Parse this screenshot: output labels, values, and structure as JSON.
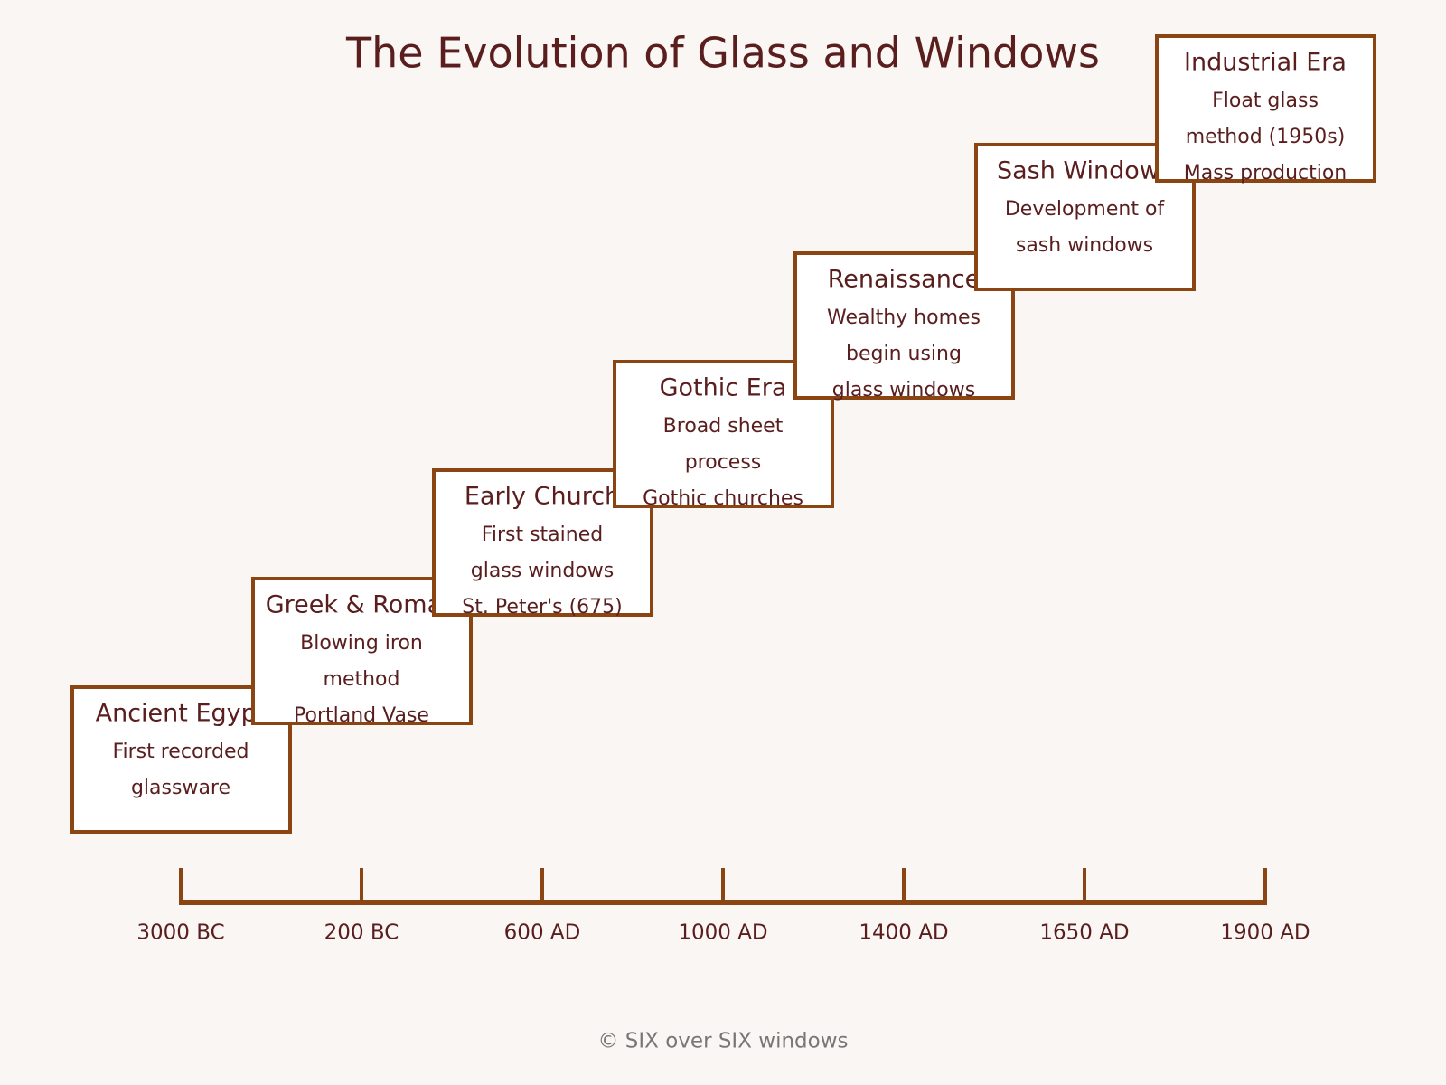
{
  "title": "The Evolution of Glass and Windows",
  "events": [
    {
      "era": "Ancient Egypt",
      "lines": [
        "First recorded",
        "glassware"
      ]
    },
    {
      "era": "Greek & Roman",
      "lines": [
        "Blowing iron",
        "method",
        "Portland Vase"
      ]
    },
    {
      "era": "Early Church",
      "lines": [
        "First stained",
        "glass windows",
        "St. Peter's (675)"
      ]
    },
    {
      "era": "Gothic Era",
      "lines": [
        "Broad sheet",
        "process",
        "Gothic churches"
      ]
    },
    {
      "era": "Renaissance",
      "lines": [
        "Wealthy homes",
        "begin using",
        "glass windows"
      ]
    },
    {
      "era": "Sash Windows",
      "lines": [
        "Development of",
        "sash windows"
      ]
    },
    {
      "era": "Industrial Era",
      "lines": [
        "Float glass",
        "method (1950s)",
        "Mass production"
      ]
    }
  ],
  "timeline": [
    "3000 BC",
    "200 BC",
    "600 AD",
    "1000 AD",
    "1400 AD",
    "1650 AD",
    "1900 AD"
  ],
  "footer": "© SIX over SIX windows"
}
